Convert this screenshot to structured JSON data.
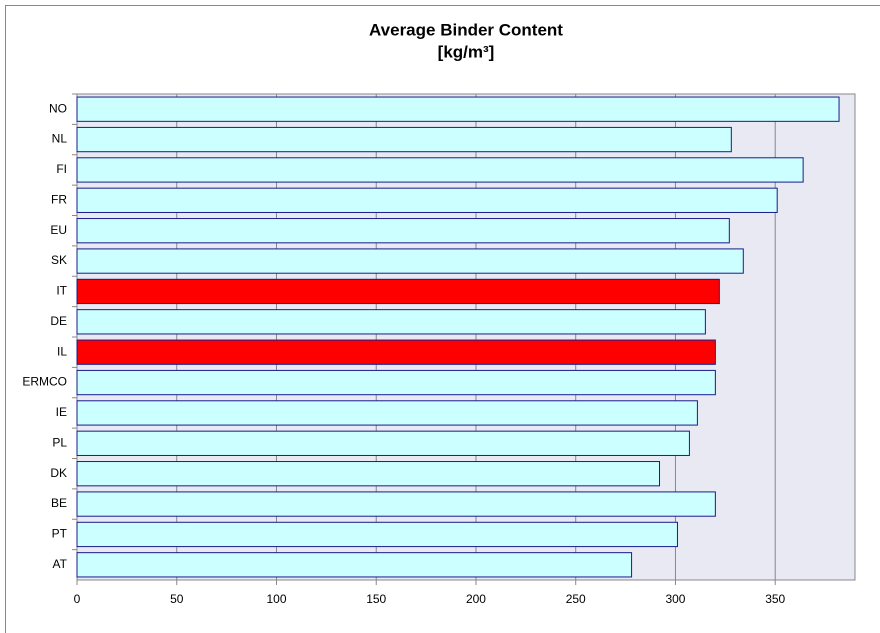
{
  "chart_data": {
    "type": "bar",
    "orientation": "horizontal",
    "title": "Average Binder Content",
    "subtitle": "[kg/m³]",
    "categories": [
      "NO",
      "NL",
      "FI",
      "FR",
      "EU",
      "SK",
      "IT",
      "DE",
      "IL",
      "ERMCO",
      "IE",
      "PL",
      "DK",
      "BE",
      "PT",
      "AT"
    ],
    "values": [
      382,
      328,
      364,
      351,
      327,
      334,
      322,
      315,
      320,
      320,
      311,
      307,
      292,
      320,
      301,
      278
    ],
    "colors": [
      "#ccffff",
      "#ccffff",
      "#ccffff",
      "#ccffff",
      "#ccffff",
      "#ccffff",
      "#ff0000",
      "#ccffff",
      "#ff0000",
      "#ccffff",
      "#ccffff",
      "#ccffff",
      "#ccffff",
      "#ccffff",
      "#ccffff",
      "#ccffff"
    ],
    "xlim": [
      0,
      390
    ],
    "xticks": [
      0,
      50,
      100,
      150,
      200,
      250,
      300,
      350
    ],
    "grid": true
  }
}
